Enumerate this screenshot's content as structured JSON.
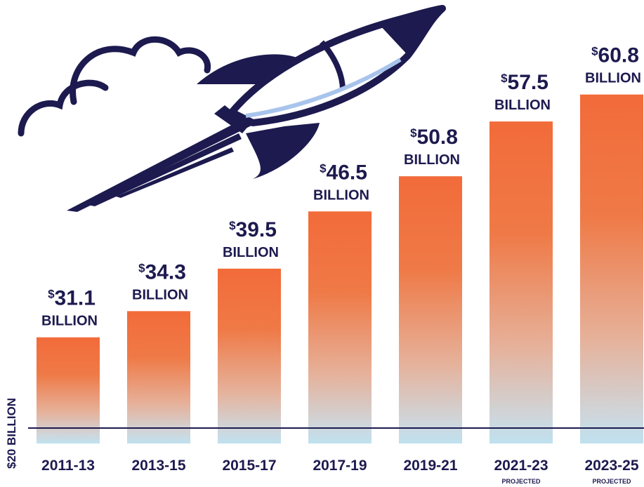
{
  "chart_data": {
    "type": "bar",
    "categories": [
      "2011-13",
      "2013-15",
      "2015-17",
      "2017-19",
      "2019-21",
      "2021-23",
      "2023-25"
    ],
    "values": [
      31.1,
      34.3,
      39.5,
      46.5,
      50.8,
      57.5,
      60.8
    ],
    "value_labels": [
      {
        "prefix": "$",
        "number": "31.1",
        "unit": "BILLION"
      },
      {
        "prefix": "$",
        "number": "34.3",
        "unit": "BILLION"
      },
      {
        "prefix": "$",
        "number": "39.5",
        "unit": "BILLION"
      },
      {
        "prefix": "$",
        "number": "46.5",
        "unit": "BILLION"
      },
      {
        "prefix": "$",
        "number": "50.8",
        "unit": "BILLION"
      },
      {
        "prefix": "$",
        "number": "57.5",
        "unit": "BILLION"
      },
      {
        "prefix": "$",
        "number": "60.8",
        "unit": "BILLION"
      }
    ],
    "category_notes": [
      "",
      "",
      "",
      "",
      "",
      "PROJECTED",
      "PROJECTED"
    ],
    "baseline_label": "$20 BILLION",
    "ylim": [
      20,
      62
    ],
    "grid": false,
    "legend": "none",
    "colors": {
      "bar_top": "#f26b3a",
      "bar_mid": "#e9a98a",
      "bar_bottom": "#bfe1ef",
      "text": "#1d1a4f",
      "baseline": "#1d1a4f"
    },
    "decoration": "rocket-icon"
  }
}
